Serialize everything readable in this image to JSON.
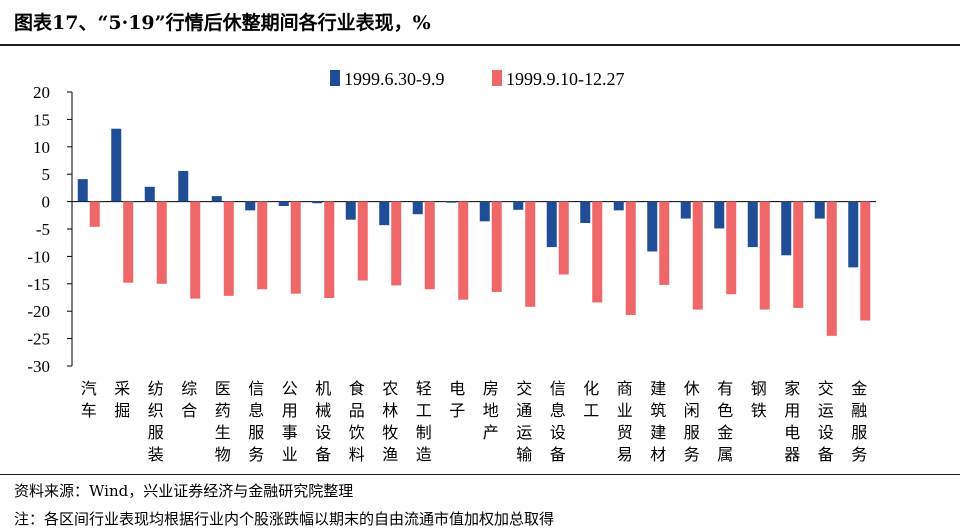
{
  "title": "图表17、“5·19”行情后休整期间各行业表现，%",
  "source": "资料来源：Wind，兴业证券经济与金融研究院整理",
  "note": "注：各区间行业表现均根据行业内个股涨跌幅以期末的自由流通市值加权加总取得",
  "chart_data": {
    "type": "bar",
    "ylim": [
      -30,
      20
    ],
    "yticks": [
      20,
      15,
      10,
      5,
      0,
      -5,
      -10,
      -15,
      -20,
      -25,
      -30
    ],
    "grid": false,
    "legend_position": "top",
    "categories": [
      "汽车",
      "采掘",
      "纺织服装",
      "综合",
      "医药生物",
      "信息服务",
      "公用事业",
      "机械设备",
      "食品饮料",
      "农林牧渔",
      "轻工制造",
      "电子",
      "房地产",
      "交通运输",
      "信息设备",
      "化工",
      "商业贸易",
      "建筑建材",
      "休闲服务",
      "有色金属",
      "钢铁",
      "家用电器",
      "交运设备",
      "金融服务"
    ],
    "series": [
      {
        "name": "1999.6.30-9.9",
        "color": "#1f4e96",
        "values": [
          4.1,
          13.3,
          2.7,
          5.6,
          1.0,
          -1.6,
          -0.8,
          -0.3,
          -3.3,
          -4.3,
          -2.3,
          -0.2,
          -3.6,
          -1.5,
          -8.3,
          -3.9,
          -1.6,
          -9.1,
          -3.1,
          -4.9,
          -8.3,
          -9.8,
          -3.1,
          -12.0
        ]
      },
      {
        "name": "1999.9.10-12.27",
        "color": "#f0676a",
        "values": [
          -4.6,
          -14.8,
          -15.0,
          -17.7,
          -17.2,
          -16.0,
          -16.8,
          -17.6,
          -14.4,
          -15.3,
          -16.0,
          -17.9,
          -16.5,
          -19.2,
          -13.3,
          -18.4,
          -20.7,
          -15.2,
          -19.7,
          -16.9,
          -19.7,
          -19.4,
          -24.5,
          -21.7
        ]
      }
    ]
  }
}
